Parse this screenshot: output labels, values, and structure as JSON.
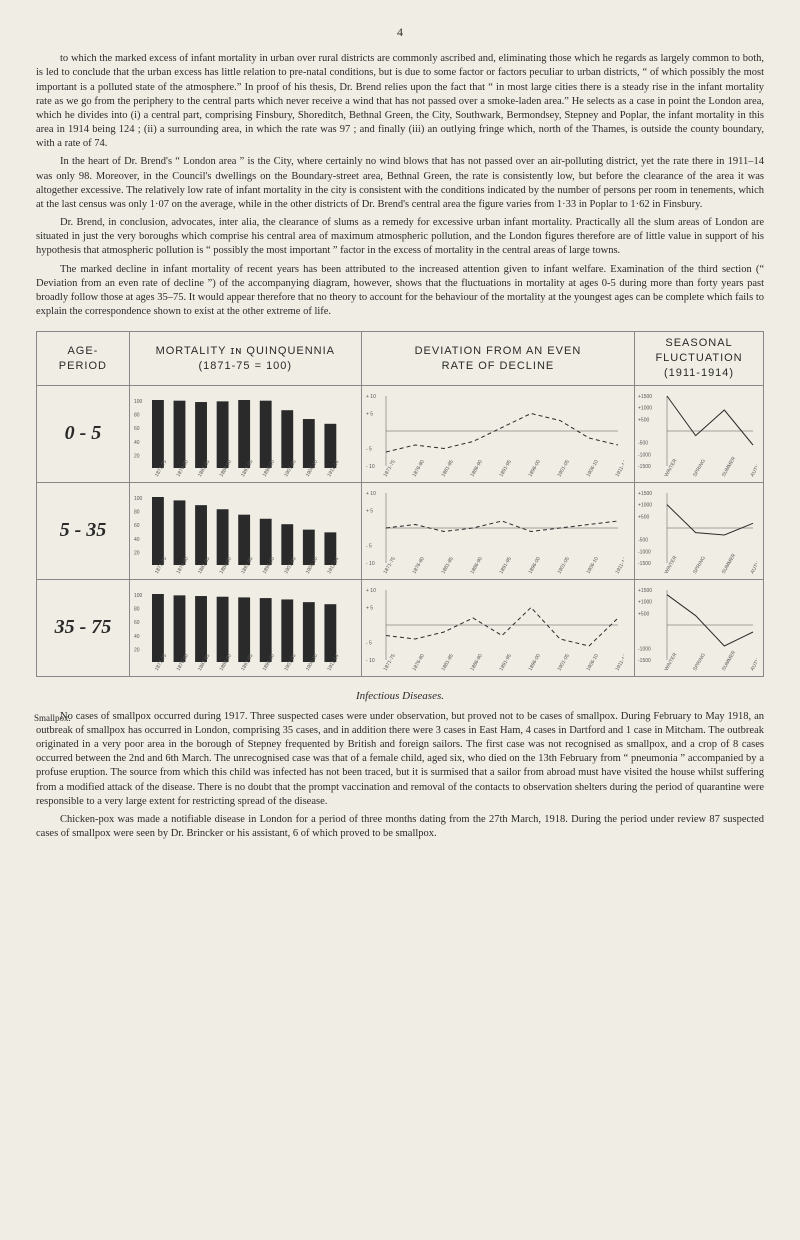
{
  "page_number": "4",
  "paragraphs": [
    "to which the marked excess of infant mortality in urban over rural districts are commonly ascribed and, eliminating those which he regards as largely common to both, is led to conclude that the urban excess has little relation to pre-natal conditions, but is due to some factor or factors peculiar to urban districts, “ of which possibly the most important is a polluted state of the atmosphere.” In proof of his thesis, Dr. Brend relies upon the fact that “ in most large cities there is a steady rise in the infant mortality rate as we go from the periphery to the central parts which never receive a wind that has not passed over a smoke-laden area.” He selects as a case in point the London area, which he divides into (i) a central part, comprising Finsbury, Shoreditch, Bethnal Green, the City, Southwark, Bermondsey, Stepney and Poplar, the infant mortality in this area in 1914 being 124 ; (ii) a surrounding area, in which the rate was 97 ; and finally (iii) an outlying fringe which, north of the Thames, is outside the county boundary, with a rate of 74.",
    "In the heart of Dr. Brend's “ London area ” is the City, where certainly no wind blows that has not passed over an air-polluting district, yet the rate there in 1911–14 was only 98. Moreover, in the Council's dwellings on the Boundary-street area, Bethnal Green, the rate is consistently low, but before the clearance of the area it was altogether excessive. The relatively low rate of infant mortality in the city is consistent with the conditions indicated by the number of persons per room in tenements, which at the last census was only 1·07 on the average, while in the other districts of Dr. Brend's central area the figure varies from 1·33 in Poplar to 1·62 in Finsbury.",
    "Dr. Brend, in conclusion, advocates, inter alia, the clearance of slums as a remedy for excessive urban infant mortality. Practically all the slum areas of London are situated in just the very boroughs which comprise his central area of maximum atmospheric pollution, and the London figures therefore are of little value in support of his hypothesis that atmospheric pollution is “ possibly the most important ” factor in the excess of mortality in the central areas of large towns.",
    "The marked decline in infant mortality of recent years has been attributed to the increased attention given to infant welfare. Examination of the third section (“ Deviation from an even rate of decline ”) of the accompanying diagram, however, shows that the fluctuations in mortality at ages 0-5 during more than forty years past broadly follow those at ages 35–75. It would appear therefore that no theory to account for the behaviour of the mortality at the youngest ages can be complete which fails to explain the correspondence shown to exist at the other extreme of life."
  ],
  "chart": {
    "header_age": "AGE-\nPERIOD",
    "header_mortality": "MORTALITY ɪɴ QUINQUENNIA\n(1871-75 = 100)",
    "header_deviation": "DEVIATION FROM AN EVEN\nRATE OF DECLINE",
    "header_seasonal": "SEASONAL\nFLUCTUATION\n(1911-1914)",
    "periods": [
      "1871-75",
      "1876-80",
      "1881-85",
      "1886-90",
      "1891-95",
      "1896-00",
      "1901-05",
      "1906-10",
      "1911-14"
    ],
    "seasons": [
      "WINTER",
      "SPRING",
      "SUMMER",
      "AUTUMN"
    ],
    "rows": [
      {
        "label": "0 - 5",
        "mortality": [
          100,
          99,
          97,
          98,
          100,
          99,
          85,
          72,
          65
        ],
        "deviation_y": [
          -6,
          -4,
          -5,
          -3,
          1,
          5,
          3,
          -2,
          -4
        ],
        "deviation_ylim": [
          -10,
          10
        ],
        "deviation_ticks": [
          -10,
          -5,
          5,
          10
        ],
        "seasonal": [
          1500,
          -200,
          900,
          -600
        ],
        "seasonal_ylim": [
          -1500,
          1500
        ],
        "seasonal_ticks": [
          1500,
          1000,
          500,
          -500,
          -1000,
          -1500
        ]
      },
      {
        "label": "5 - 35",
        "mortality": [
          100,
          95,
          88,
          82,
          74,
          68,
          60,
          52,
          48
        ],
        "deviation_y": [
          0,
          1,
          -1,
          0,
          2,
          -1,
          0,
          1,
          2
        ],
        "deviation_ylim": [
          -10,
          10
        ],
        "deviation_ticks": [
          -10,
          -5,
          5,
          10
        ],
        "seasonal": [
          1000,
          -200,
          -300,
          200
        ],
        "seasonal_ylim": [
          -1500,
          1500
        ],
        "seasonal_ticks": [
          1500,
          1000,
          500,
          -500,
          -1000,
          -1500
        ]
      },
      {
        "label": "35 - 75",
        "mortality": [
          100,
          98,
          97,
          96,
          95,
          94,
          92,
          88,
          85
        ],
        "deviation_y": [
          -3,
          -4,
          -2,
          2,
          -3,
          5,
          -4,
          -6,
          2
        ],
        "deviation_ylim": [
          -10,
          10
        ],
        "deviation_ticks": [
          -10,
          -5,
          5,
          10
        ],
        "seasonal": [
          1300,
          400,
          -900,
          -300
        ],
        "seasonal_ylim": [
          -1500,
          1500
        ],
        "seasonal_ticks": [
          1500,
          1000,
          500,
          -1000,
          -1500
        ]
      }
    ],
    "bar_color": "#2a2a2a",
    "line_color": "#2a2a2a",
    "axis_color": "#555555",
    "tick_font_size": 5
  },
  "subheading": "Infectious Diseases.",
  "margin_label": "Smallpox.",
  "final_paragraphs": [
    "No cases of smallpox occurred during 1917. Three suspected cases were under observation, but proved not to be cases of smallpox. During February to May 1918, an outbreak of smallpox has occurred in London, comprising 35 cases, and in addition there were 3 cases in East Ham, 4 cases in Dartford and 1 case in Mitcham. The outbreak originated in a very poor area in the borough of Stepney frequented by British and foreign sailors. The first case was not recognised as smallpox, and a crop of 8 cases occurred between the 2nd and 6th March. The unrecognised case was that of a female child, aged six, who died on the 13th February from “ pneumonia ” accompanied by a profuse eruption. The source from which this child was infected has not been traced, but it is surmised that a sailor from abroad must have visited the house whilst suffering from a modified attack of the disease. There is no doubt that the prompt vaccination and removal of the contacts to observation shelters during the period of quarantine were responsible to a very large extent for restricting spread of the disease.",
    "Chicken-pox was made a notifiable disease in London for a period of three months dating from the 27th March, 1918. During the period under review 87 suspected cases of smallpox were seen by Dr. Brincker or his assistant, 6 of which proved to be smallpox."
  ]
}
